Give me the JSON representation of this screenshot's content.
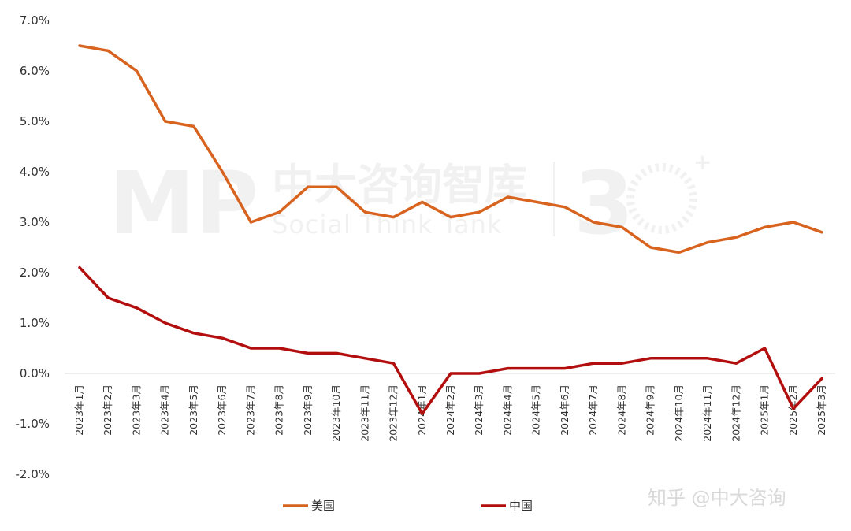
{
  "chart_data": {
    "type": "line",
    "categories": [
      "2023年1月",
      "2023年2月",
      "2023年3月",
      "2023年4月",
      "2023年5月",
      "2023年6月",
      "2023年7月",
      "2023年8月",
      "2023年9月",
      "2023年10月",
      "2023年11月",
      "2023年12月",
      "2024年1月",
      "2024年2月",
      "2024年3月",
      "2024年4月",
      "2024年5月",
      "2024年6月",
      "2024年7月",
      "2024年8月",
      "2024年9月",
      "2024年10月",
      "2024年11月",
      "2024年12月",
      "2025年1月",
      "2025年2月",
      "2025年3月"
    ],
    "series": [
      {
        "name": "美国",
        "color": "#d8631f",
        "values": [
          6.5,
          6.4,
          6.0,
          5.0,
          4.9,
          4.0,
          3.0,
          3.2,
          3.7,
          3.7,
          3.2,
          3.1,
          3.4,
          3.1,
          3.2,
          3.5,
          3.4,
          3.3,
          3.0,
          2.9,
          2.5,
          2.4,
          2.6,
          2.7,
          2.9,
          3.0,
          2.8
        ]
      },
      {
        "name": "中国",
        "color": "#b30e0e",
        "values": [
          2.1,
          1.5,
          1.3,
          1.0,
          0.8,
          0.7,
          0.5,
          0.5,
          0.4,
          0.4,
          0.3,
          0.2,
          -0.8,
          0.0,
          0.0,
          0.1,
          0.1,
          0.1,
          0.2,
          0.2,
          0.3,
          0.3,
          0.3,
          0.2,
          0.5,
          -0.7,
          -0.1
        ]
      }
    ],
    "yticks": [
      "7.0%",
      "6.0%",
      "5.0%",
      "4.0%",
      "3.0%",
      "2.0%",
      "1.0%",
      "0.0%",
      "-1.0%",
      "-2.0%"
    ],
    "ylim": [
      -2.0,
      7.0
    ],
    "unit": "%",
    "grid": false,
    "legend": "bottom"
  },
  "watermark": {
    "logo": "MP",
    "name": "中大咨询智库",
    "subtitle": "Social Think Tank",
    "anniversary": "3"
  },
  "credit": "知乎 @中大咨询"
}
